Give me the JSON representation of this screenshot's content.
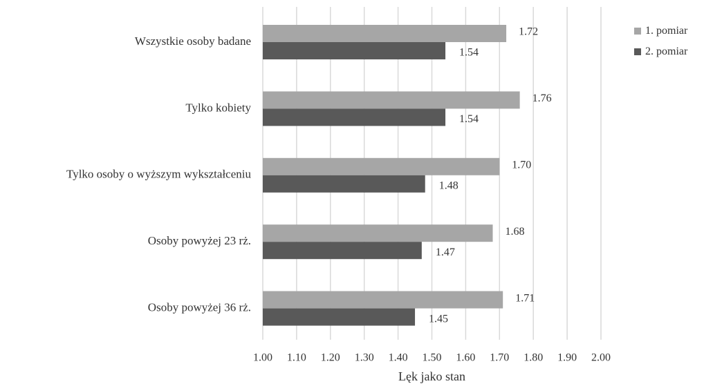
{
  "chart_data": {
    "type": "bar",
    "orientation": "horizontal",
    "title": "",
    "xlabel": "Lęk jako stan",
    "ylabel": "",
    "categories": [
      "Wszystkie osoby badane",
      "Tylko kobiety",
      "Tylko osoby o wyższym wykształceniu",
      "Osoby powyżej 23 rż.",
      "Osoby powyżej 36 rż."
    ],
    "series": [
      {
        "name": "1. pomiar",
        "color": "#a6a6a6",
        "values": [
          1.72,
          1.76,
          1.7,
          1.68,
          1.71
        ],
        "labels": [
          "1.72",
          "1.76",
          "1.70",
          "1.68",
          "1.71"
        ]
      },
      {
        "name": "2. pomiar",
        "color": "#595959",
        "values": [
          1.54,
          1.54,
          1.48,
          1.47,
          1.45
        ],
        "labels": [
          "1.54",
          "1.54",
          "1.48",
          "1.47",
          "1.45"
        ]
      }
    ],
    "xlim": [
      1.0,
      2.0
    ],
    "xticks": [
      "1.00",
      "1.10",
      "1.20",
      "1.30",
      "1.40",
      "1.50",
      "1.60",
      "1.70",
      "1.80",
      "1.90",
      "2.00"
    ],
    "grid": true,
    "legend_position": "top-right"
  }
}
